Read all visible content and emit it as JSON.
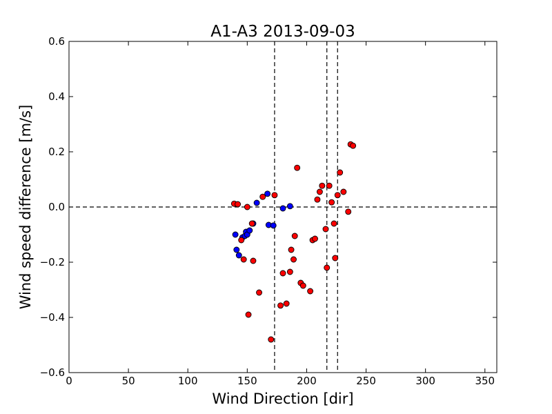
{
  "chart_data": {
    "type": "scatter",
    "title": "A1-A3 2013-09-03",
    "xlabel": "Wind Direction [dir]",
    "ylabel": "Wind speed difference [m/s]",
    "xlim": [
      0,
      360
    ],
    "ylim": [
      -0.6,
      0.6
    ],
    "xticks": [
      0,
      50,
      100,
      150,
      200,
      250,
      300,
      350
    ],
    "yticks": [
      -0.6,
      -0.4,
      -0.2,
      0.0,
      0.2,
      0.4,
      0.6
    ],
    "ytick_labels": [
      "−0.6",
      "−0.4",
      "−0.2",
      "0.0",
      "0.2",
      "0.4",
      "0.6"
    ],
    "grid": false,
    "reference_lines": {
      "vertical": [
        173,
        217,
        226
      ],
      "horizontal": [
        0.0
      ]
    },
    "colors": {
      "blue_points": "#0000ff",
      "red_points": "#ff0000",
      "reference_line": "#000000"
    },
    "series": [
      {
        "color": "#0000ff",
        "points": [
          [
            140,
            -0.1
          ],
          [
            141,
            -0.155
          ],
          [
            143,
            -0.175
          ],
          [
            146,
            -0.11
          ],
          [
            148,
            -0.105
          ],
          [
            149,
            -0.09
          ],
          [
            150,
            -0.1
          ],
          [
            152,
            -0.085
          ],
          [
            155,
            -0.06
          ],
          [
            158,
            0.015
          ],
          [
            167,
            0.048
          ],
          [
            168,
            -0.065
          ],
          [
            172,
            -0.067
          ],
          [
            180,
            -0.005
          ],
          [
            186,
            0.003
          ]
        ]
      },
      {
        "color": "#ff0000",
        "points": [
          [
            139,
            0.012
          ],
          [
            142,
            0.01
          ],
          [
            145,
            -0.12
          ],
          [
            147,
            -0.19
          ],
          [
            150,
            0.0
          ],
          [
            151,
            -0.39
          ],
          [
            154,
            -0.06
          ],
          [
            155,
            -0.195
          ],
          [
            160,
            -0.31
          ],
          [
            163,
            0.037
          ],
          [
            170,
            -0.48
          ],
          [
            173,
            0.043
          ],
          [
            178,
            -0.357
          ],
          [
            180,
            -0.24
          ],
          [
            183,
            -0.35
          ],
          [
            186,
            -0.235
          ],
          [
            187,
            -0.155
          ],
          [
            189,
            -0.19
          ],
          [
            190,
            -0.105
          ],
          [
            192,
            0.142
          ],
          [
            195,
            -0.275
          ],
          [
            197,
            -0.285
          ],
          [
            203,
            -0.305
          ],
          [
            205,
            -0.12
          ],
          [
            207,
            -0.115
          ],
          [
            209,
            0.027
          ],
          [
            211,
            0.055
          ],
          [
            213,
            0.077
          ],
          [
            216,
            -0.08
          ],
          [
            217,
            -0.22
          ],
          [
            219,
            0.077
          ],
          [
            221,
            0.017
          ],
          [
            223,
            -0.06
          ],
          [
            224,
            -0.185
          ],
          [
            226,
            0.043
          ],
          [
            228,
            0.125
          ],
          [
            231,
            0.055
          ],
          [
            235,
            -0.017
          ],
          [
            237,
            0.227
          ],
          [
            239,
            0.222
          ]
        ]
      }
    ]
  }
}
